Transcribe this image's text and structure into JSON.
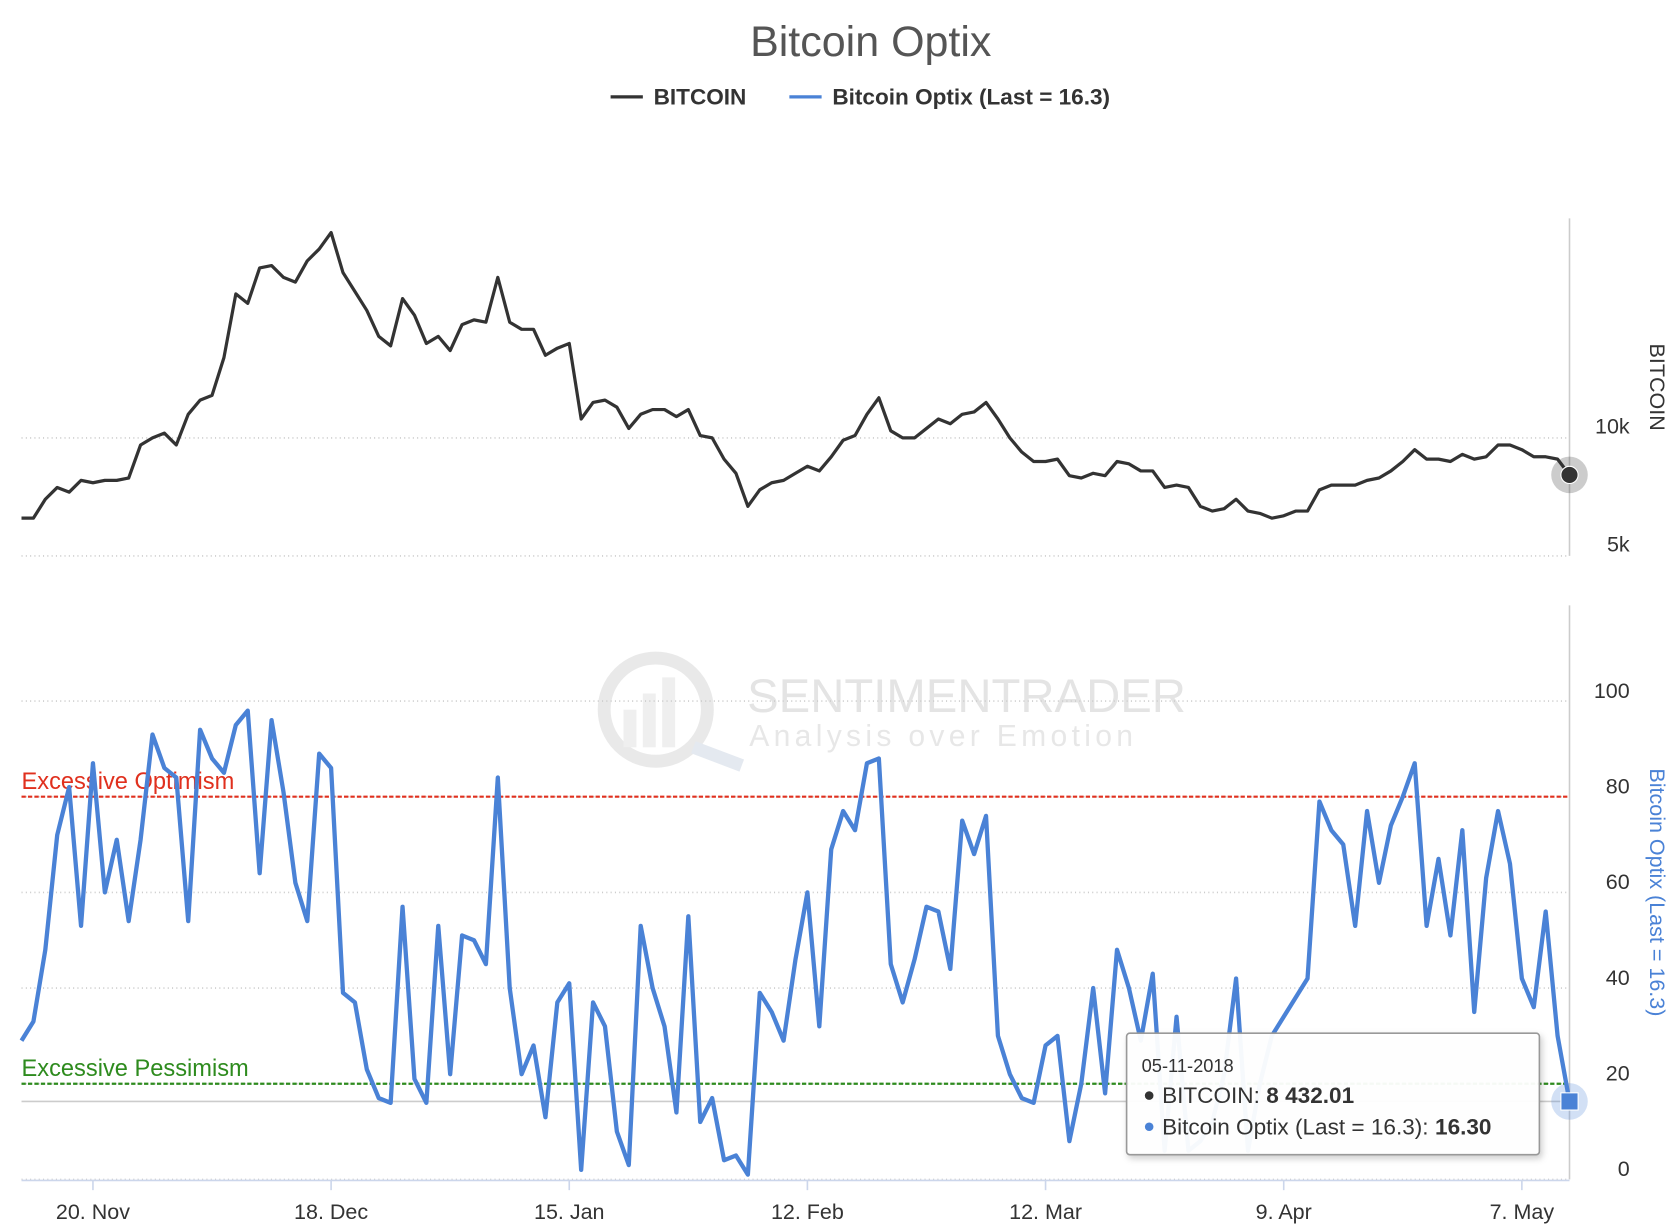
{
  "chart_data": {
    "type": "line",
    "title": "Bitcoin Optix",
    "x": [
      "2017-11-10",
      "2017-11-13",
      "2017-11-14",
      "2017-11-15",
      "2017-11-16",
      "2017-11-17",
      "2017-11-20",
      "2017-11-21",
      "2017-11-22",
      "2017-11-23",
      "2017-11-24",
      "2017-11-27",
      "2017-11-28",
      "2017-11-29",
      "2017-11-30",
      "2017-12-01",
      "2017-12-04",
      "2017-12-05",
      "2017-12-06",
      "2017-12-07",
      "2017-12-08",
      "2017-12-11",
      "2017-12-12",
      "2017-12-13",
      "2017-12-14",
      "2017-12-15",
      "2017-12-18",
      "2017-12-19",
      "2017-12-20",
      "2017-12-21",
      "2017-12-22",
      "2017-12-25",
      "2017-12-26",
      "2017-12-27",
      "2017-12-28",
      "2017-12-29",
      "2018-01-01",
      "2018-01-02",
      "2018-01-03",
      "2018-01-04",
      "2018-01-05",
      "2018-01-08",
      "2018-01-09",
      "2018-01-10",
      "2018-01-11",
      "2018-01-12",
      "2018-01-15",
      "2018-01-16",
      "2018-01-17",
      "2018-01-18",
      "2018-01-19",
      "2018-01-22",
      "2018-01-23",
      "2018-01-24",
      "2018-01-25",
      "2018-01-26",
      "2018-01-29",
      "2018-01-30",
      "2018-01-31",
      "2018-02-01",
      "2018-02-02",
      "2018-02-05",
      "2018-02-06",
      "2018-02-07",
      "2018-02-08",
      "2018-02-09",
      "2018-02-12",
      "2018-02-13",
      "2018-02-14",
      "2018-02-15",
      "2018-02-16",
      "2018-02-19",
      "2018-02-20",
      "2018-02-21",
      "2018-02-22",
      "2018-02-23",
      "2018-02-26",
      "2018-02-27",
      "2018-02-28",
      "2018-03-01",
      "2018-03-02",
      "2018-03-05",
      "2018-03-06",
      "2018-03-07",
      "2018-03-08",
      "2018-03-09",
      "2018-03-12",
      "2018-03-13",
      "2018-03-14",
      "2018-03-15",
      "2018-03-16",
      "2018-03-19",
      "2018-03-20",
      "2018-03-21",
      "2018-03-22",
      "2018-03-23",
      "2018-03-26",
      "2018-03-27",
      "2018-03-28",
      "2018-03-29",
      "2018-03-30",
      "2018-04-02",
      "2018-04-03",
      "2018-04-04",
      "2018-04-05",
      "2018-04-06",
      "2018-04-09",
      "2018-04-10",
      "2018-04-11",
      "2018-04-12",
      "2018-04-13",
      "2018-04-16",
      "2018-04-17",
      "2018-04-18",
      "2018-04-19",
      "2018-04-20",
      "2018-04-23",
      "2018-04-24",
      "2018-04-25",
      "2018-04-26",
      "2018-04-27",
      "2018-04-30",
      "2018-05-01",
      "2018-05-02",
      "2018-05-03",
      "2018-05-04",
      "2018-05-07",
      "2018-05-08",
      "2018-05-09",
      "2018-05-10",
      "2018-05-11"
    ],
    "xticks": [
      {
        "value": "2017-11-20",
        "label": "20. Nov"
      },
      {
        "value": "2017-12-18",
        "label": "18. Dec"
      },
      {
        "value": "2018-01-15",
        "label": "15. Jan"
      },
      {
        "value": "2018-02-12",
        "label": "12. Feb"
      },
      {
        "value": "2018-03-12",
        "label": "12. Mar"
      },
      {
        "value": "2018-04-09",
        "label": "9. Apr"
      },
      {
        "value": "2018-05-07",
        "label": "7. May"
      }
    ],
    "series": [
      {
        "name": "BITCOIN",
        "color": "#333333",
        "axis": "y",
        "values": [
          6600,
          6600,
          7400,
          7900,
          7700,
          8200,
          8100,
          8200,
          8200,
          8300,
          9700,
          10000,
          10200,
          9700,
          11000,
          11600,
          11800,
          13400,
          16100,
          15700,
          17200,
          17300,
          16800,
          16600,
          17500,
          18000,
          18700,
          17000,
          16200,
          15400,
          14300,
          13900,
          15900,
          15200,
          14000,
          14300,
          13700,
          14800,
          15000,
          14900,
          16800,
          14900,
          14600,
          14600,
          13500,
          13800,
          14000,
          10800,
          11500,
          11600,
          11300,
          10400,
          11000,
          11200,
          11200,
          10900,
          11200,
          10100,
          10000,
          9100,
          8500,
          7100,
          7800,
          8100,
          8200,
          8500,
          8800,
          8600,
          9200,
          9900,
          10100,
          11000,
          11700,
          10300,
          10000,
          10000,
          10400,
          10800,
          10600,
          11000,
          11100,
          11500,
          10800,
          10000,
          9400,
          9000,
          9000,
          9100,
          8400,
          8300,
          8500,
          8400,
          9000,
          8900,
          8600,
          8600,
          7900,
          8000,
          7900,
          7100,
          6900,
          7000,
          7400,
          6900,
          6800,
          6600,
          6700,
          6900,
          6900,
          7800,
          8000,
          8000,
          8000,
          8200,
          8300,
          8600,
          9000,
          9500,
          9100,
          9100,
          9000,
          9300,
          9100,
          9200,
          9700,
          9700,
          9500,
          9200,
          9200,
          9100,
          8432.01
        ]
      },
      {
        "name": "Bitcoin Optix (Last = 16.3)",
        "color": "#4a82d6",
        "axis": "y2",
        "values": [
          29,
          33,
          48,
          72,
          82,
          53,
          87,
          60,
          71,
          54,
          71,
          93,
          86,
          84,
          54,
          94,
          88,
          85,
          95,
          98,
          64,
          96,
          81,
          62,
          54,
          89,
          86,
          39,
          37,
          23,
          17,
          16,
          57,
          21,
          16,
          53,
          22,
          51,
          50,
          45,
          84,
          40,
          22,
          28,
          13,
          37,
          41,
          2,
          37,
          32,
          10,
          3,
          53,
          40,
          32,
          14,
          55,
          12,
          17,
          4,
          5,
          1,
          39,
          35,
          29,
          46,
          60,
          32,
          69,
          77,
          73,
          87,
          88,
          45,
          37,
          46,
          57,
          56,
          44,
          75,
          68,
          76,
          30,
          22,
          17,
          16,
          28,
          30,
          8,
          20,
          40,
          18,
          48,
          40,
          29,
          43,
          6,
          34,
          6,
          8,
          12,
          22,
          42,
          6,
          20,
          30,
          34,
          38,
          42,
          79,
          73,
          70,
          53,
          77,
          62,
          74,
          80,
          87,
          53,
          67,
          51,
          73,
          35,
          63,
          77,
          66,
          42,
          36,
          56,
          30,
          16.3
        ]
      }
    ],
    "ylabel": "BITCOIN",
    "ylim": [
      5000,
      19300
    ],
    "yticks": [
      {
        "value": 5000,
        "label": "5k"
      },
      {
        "value": 10000,
        "label": "10k"
      }
    ],
    "y2label": "Bitcoin Optix (Last = 16.3)",
    "y2lim": [
      0,
      120
    ],
    "y2ticks": [
      0,
      20,
      40,
      60,
      80,
      100
    ],
    "grid": true,
    "legend": "top",
    "plot_lines": [
      {
        "value": 80,
        "label": "Excessive Optimism",
        "color": "#e0301e"
      },
      {
        "value": 20,
        "label": "Excessive Pessimism",
        "color": "#2e8b1e"
      }
    ],
    "watermark": {
      "title": "SENTIMENTRADER",
      "subtitle": "Analysis over Emotion"
    },
    "tooltip": {
      "title": "05-11-2018",
      "items": [
        {
          "label": "BITCOIN:",
          "value": "8 432.01"
        },
        {
          "label": "Bitcoin Optix (Last = 16.3):",
          "value": "16.30"
        }
      ]
    }
  }
}
